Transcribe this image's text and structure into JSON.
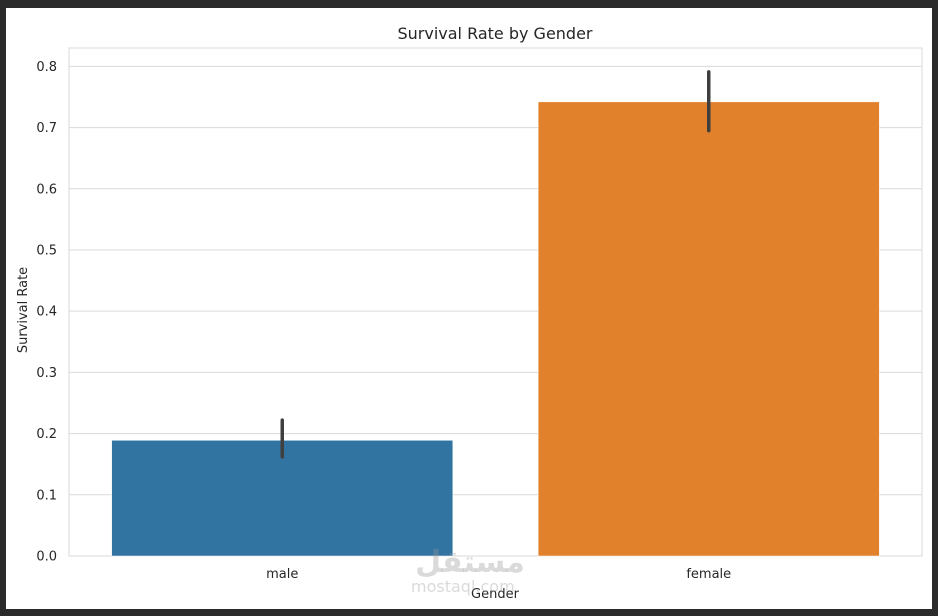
{
  "chart_data": {
    "type": "bar",
    "title": "Survival Rate by Gender",
    "xlabel": "Gender",
    "ylabel": "Survival Rate",
    "categories": [
      "male",
      "female"
    ],
    "values": [
      0.189,
      0.742
    ],
    "error_bars": [
      [
        0.162,
        0.222
      ],
      [
        0.695,
        0.791
      ]
    ],
    "colors": [
      "#3274a1",
      "#e1812c"
    ],
    "error_color": "#3f3f3f",
    "ylim": [
      0,
      0.83
    ],
    "yticks": [
      0.0,
      0.1,
      0.2,
      0.3,
      0.4,
      0.5,
      0.6,
      0.7,
      0.8
    ],
    "ytick_labels": [
      "0.0",
      "0.1",
      "0.2",
      "0.3",
      "0.4",
      "0.5",
      "0.6",
      "0.7",
      "0.8"
    ],
    "grid": "horizontal",
    "grid_color": "#d9d9d9"
  },
  "watermark": {
    "arabic": "مستقل",
    "latin": "mostaql.com"
  }
}
